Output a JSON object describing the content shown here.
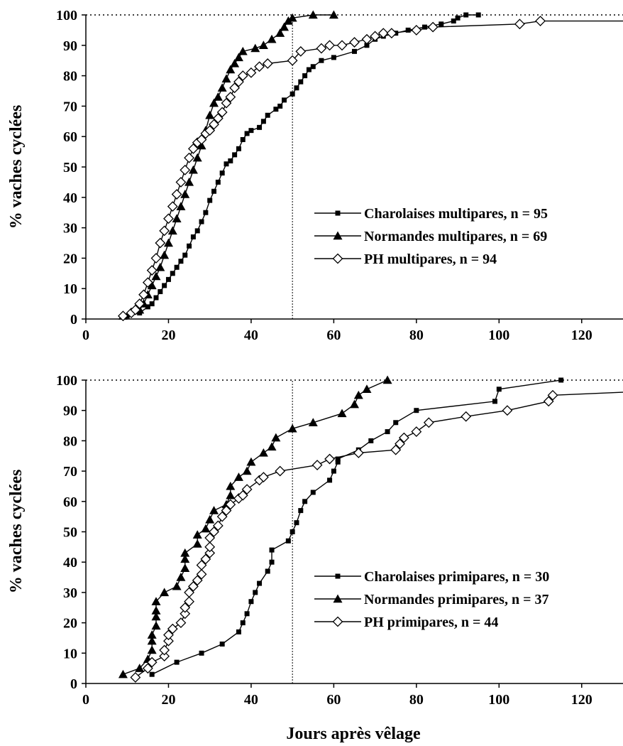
{
  "x_axis_label": "Jours après vêlage",
  "chart_data": [
    {
      "type": "line",
      "title": "",
      "ylabel": "% vaches cyclées",
      "xlabel": "",
      "xlim": [
        0,
        130
      ],
      "ylim": [
        0,
        100
      ],
      "x_ticks": [
        "0",
        "20",
        "40",
        "60",
        "80",
        "100",
        "120"
      ],
      "y_ticks": [
        "0",
        "10",
        "20",
        "30",
        "40",
        "50",
        "60",
        "70",
        "80",
        "90",
        "100"
      ],
      "reference_lines": [
        {
          "axis": "x",
          "value": 50,
          "style": "dotted"
        },
        {
          "axis": "y",
          "value": 100,
          "style": "dotted"
        }
      ],
      "legend": "right",
      "series": [
        {
          "name": "Charolaises multipares, n = 95",
          "marker": "square",
          "color": "#000000",
          "points": [
            [
              10,
              1
            ],
            [
              13,
              2
            ],
            [
              15,
              4
            ],
            [
              16,
              5
            ],
            [
              17,
              7
            ],
            [
              18,
              9
            ],
            [
              19,
              11
            ],
            [
              20,
              13
            ],
            [
              21,
              15
            ],
            [
              22,
              17
            ],
            [
              23,
              19
            ],
            [
              24,
              21
            ],
            [
              25,
              24
            ],
            [
              26,
              27
            ],
            [
              27,
              29
            ],
            [
              28,
              32
            ],
            [
              29,
              35
            ],
            [
              30,
              39
            ],
            [
              31,
              42
            ],
            [
              32,
              45
            ],
            [
              33,
              48
            ],
            [
              34,
              51
            ],
            [
              35,
              52
            ],
            [
              36,
              54
            ],
            [
              37,
              56
            ],
            [
              38,
              59
            ],
            [
              39,
              61
            ],
            [
              40,
              62
            ],
            [
              42,
              63
            ],
            [
              43,
              65
            ],
            [
              44,
              67
            ],
            [
              46,
              69
            ],
            [
              47,
              70
            ],
            [
              48,
              72
            ],
            [
              50,
              74
            ],
            [
              51,
              76
            ],
            [
              52,
              78
            ],
            [
              53,
              80
            ],
            [
              54,
              82
            ],
            [
              55,
              83
            ],
            [
              57,
              85
            ],
            [
              60,
              86
            ],
            [
              65,
              88
            ],
            [
              68,
              90
            ],
            [
              70,
              92
            ],
            [
              72,
              93
            ],
            [
              75,
              94
            ],
            [
              78,
              95
            ],
            [
              82,
              96
            ],
            [
              86,
              97
            ],
            [
              89,
              98
            ],
            [
              90,
              99
            ],
            [
              92,
              100
            ],
            [
              95,
              100
            ]
          ]
        },
        {
          "name": "Normandes multipares, n = 69",
          "marker": "triangle",
          "color": "#000000",
          "points": [
            [
              9,
              1
            ],
            [
              13,
              3
            ],
            [
              14,
              5
            ],
            [
              15,
              8
            ],
            [
              16,
              11
            ],
            [
              17,
              14
            ],
            [
              18,
              17
            ],
            [
              19,
              21
            ],
            [
              20,
              25
            ],
            [
              21,
              29
            ],
            [
              22,
              33
            ],
            [
              23,
              37
            ],
            [
              24,
              41
            ],
            [
              25,
              45
            ],
            [
              26,
              49
            ],
            [
              27,
              53
            ],
            [
              28,
              57
            ],
            [
              29,
              62
            ],
            [
              30,
              67
            ],
            [
              31,
              71
            ],
            [
              32,
              73
            ],
            [
              33,
              76
            ],
            [
              34,
              79
            ],
            [
              35,
              82
            ],
            [
              36,
              84
            ],
            [
              37,
              86
            ],
            [
              38,
              88
            ],
            [
              41,
              89
            ],
            [
              43,
              90
            ],
            [
              45,
              92
            ],
            [
              47,
              94
            ],
            [
              48,
              96
            ],
            [
              49,
              98
            ],
            [
              50,
              99
            ],
            [
              55,
              100
            ],
            [
              60,
              100
            ]
          ]
        },
        {
          "name": "PH multipares, n = 94",
          "marker": "diamond-open",
          "color": "#000000",
          "points": [
            [
              9,
              1
            ],
            [
              11,
              2
            ],
            [
              12,
              3
            ],
            [
              13,
              5
            ],
            [
              14,
              8
            ],
            [
              15,
              12
            ],
            [
              16,
              16
            ],
            [
              17,
              20
            ],
            [
              18,
              25
            ],
            [
              19,
              29
            ],
            [
              20,
              33
            ],
            [
              21,
              37
            ],
            [
              22,
              41
            ],
            [
              23,
              45
            ],
            [
              24,
              49
            ],
            [
              25,
              53
            ],
            [
              26,
              56
            ],
            [
              27,
              58
            ],
            [
              28,
              59
            ],
            [
              29,
              61
            ],
            [
              30,
              62
            ],
            [
              31,
              64
            ],
            [
              32,
              66
            ],
            [
              33,
              68
            ],
            [
              34,
              71
            ],
            [
              35,
              73
            ],
            [
              36,
              76
            ],
            [
              37,
              78
            ],
            [
              38,
              80
            ],
            [
              40,
              81
            ],
            [
              42,
              83
            ],
            [
              44,
              84
            ],
            [
              50,
              85
            ],
            [
              52,
              88
            ],
            [
              57,
              89
            ],
            [
              59,
              90
            ],
            [
              62,
              90
            ],
            [
              65,
              91
            ],
            [
              68,
              92
            ],
            [
              70,
              93
            ],
            [
              72,
              94
            ],
            [
              74,
              94
            ],
            [
              80,
              95
            ],
            [
              84,
              96
            ],
            [
              105,
              97
            ],
            [
              110,
              98
            ],
            [
              130,
              98
            ]
          ]
        }
      ]
    },
    {
      "type": "line",
      "title": "",
      "ylabel": "% vaches cyclées",
      "xlabel": "Jours après vêlage",
      "xlim": [
        0,
        130
      ],
      "ylim": [
        0,
        100
      ],
      "x_ticks": [
        "0",
        "20",
        "40",
        "60",
        "80",
        "100",
        "120"
      ],
      "y_ticks": [
        "0",
        "10",
        "20",
        "30",
        "40",
        "50",
        "60",
        "70",
        "80",
        "90",
        "100"
      ],
      "reference_lines": [
        {
          "axis": "x",
          "value": 50,
          "style": "dotted"
        },
        {
          "axis": "y",
          "value": 100,
          "style": "dotted"
        }
      ],
      "legend": "right",
      "series": [
        {
          "name": "Charolaises primipares, n = 30",
          "marker": "square",
          "color": "#000000",
          "points": [
            [
              16,
              3
            ],
            [
              22,
              7
            ],
            [
              28,
              10
            ],
            [
              33,
              13
            ],
            [
              37,
              17
            ],
            [
              38,
              20
            ],
            [
              39,
              23
            ],
            [
              40,
              27
            ],
            [
              41,
              30
            ],
            [
              42,
              33
            ],
            [
              44,
              37
            ],
            [
              45,
              40
            ],
            [
              45,
              44
            ],
            [
              49,
              47
            ],
            [
              50,
              50
            ],
            [
              51,
              53
            ],
            [
              52,
              57
            ],
            [
              53,
              60
            ],
            [
              55,
              63
            ],
            [
              59,
              67
            ],
            [
              60,
              70
            ],
            [
              61,
              73
            ],
            [
              61,
              74
            ],
            [
              66,
              77
            ],
            [
              69,
              80
            ],
            [
              73,
              83
            ],
            [
              75,
              86
            ],
            [
              80,
              90
            ],
            [
              99,
              93
            ],
            [
              100,
              97
            ],
            [
              115,
              100
            ]
          ]
        },
        {
          "name": "Normandes primipares, n = 37",
          "marker": "triangle",
          "color": "#000000",
          "points": [
            [
              9,
              3
            ],
            [
              13,
              5
            ],
            [
              15,
              8
            ],
            [
              16,
              11
            ],
            [
              16,
              14
            ],
            [
              16,
              16
            ],
            [
              17,
              19
            ],
            [
              17,
              22
            ],
            [
              17,
              24
            ],
            [
              17,
              27
            ],
            [
              19,
              30
            ],
            [
              22,
              32
            ],
            [
              23,
              35
            ],
            [
              24,
              38
            ],
            [
              24,
              41
            ],
            [
              24,
              43
            ],
            [
              27,
              46
            ],
            [
              27,
              49
            ],
            [
              29,
              51
            ],
            [
              30,
              54
            ],
            [
              31,
              57
            ],
            [
              34,
              59
            ],
            [
              35,
              62
            ],
            [
              35,
              65
            ],
            [
              37,
              68
            ],
            [
              39,
              70
            ],
            [
              40,
              73
            ],
            [
              43,
              76
            ],
            [
              45,
              78
            ],
            [
              46,
              81
            ],
            [
              50,
              84
            ],
            [
              55,
              86
            ],
            [
              62,
              89
            ],
            [
              65,
              92
            ],
            [
              66,
              95
            ],
            [
              68,
              97
            ],
            [
              73,
              100
            ]
          ]
        },
        {
          "name": "PH primipares, n = 44",
          "marker": "diamond-open",
          "color": "#000000",
          "points": [
            [
              12,
              2
            ],
            [
              15,
              5
            ],
            [
              16,
              7
            ],
            [
              19,
              9
            ],
            [
              19,
              11
            ],
            [
              20,
              14
            ],
            [
              20,
              16
            ],
            [
              21,
              18
            ],
            [
              23,
              20
            ],
            [
              24,
              23
            ],
            [
              24,
              25
            ],
            [
              25,
              27
            ],
            [
              25,
              30
            ],
            [
              26,
              32
            ],
            [
              27,
              34
            ],
            [
              28,
              36
            ],
            [
              28,
              39
            ],
            [
              29,
              41
            ],
            [
              30,
              43
            ],
            [
              30,
              45
            ],
            [
              30,
              48
            ],
            [
              31,
              50
            ],
            [
              32,
              52
            ],
            [
              33,
              55
            ],
            [
              34,
              57
            ],
            [
              35,
              59
            ],
            [
              37,
              61
            ],
            [
              38,
              62
            ],
            [
              39,
              64
            ],
            [
              42,
              67
            ],
            [
              43,
              68
            ],
            [
              47,
              70
            ],
            [
              56,
              72
            ],
            [
              59,
              74
            ],
            [
              66,
              76
            ],
            [
              75,
              77
            ],
            [
              76,
              79
            ],
            [
              77,
              81
            ],
            [
              80,
              83
            ],
            [
              83,
              86
            ],
            [
              92,
              88
            ],
            [
              102,
              90
            ],
            [
              112,
              93
            ],
            [
              113,
              95
            ],
            [
              130,
              96
            ]
          ]
        }
      ]
    }
  ]
}
